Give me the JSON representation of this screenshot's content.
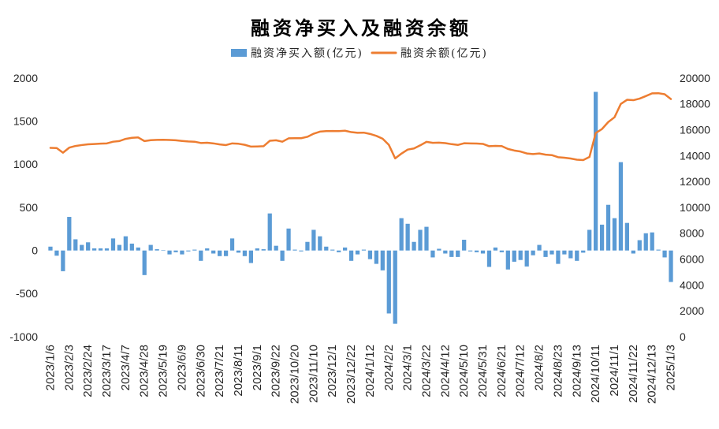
{
  "chart_data": {
    "type": "bar",
    "title": "融资净买入及融资余额",
    "categories": [
      "2023/1/6",
      "",
      "",
      "2023/2/3",
      "",
      "",
      "2023/2/24",
      "",
      "",
      "2023/3/17",
      "",
      "",
      "2023/4/7",
      "",
      "",
      "2023/4/28",
      "",
      "",
      "2023/5/19",
      "",
      "",
      "2023/6/9",
      "",
      "",
      "2023/6/30",
      "",
      "",
      "2023/7/21",
      "",
      "",
      "2023/8/11",
      "",
      "",
      "2023/9/1",
      "",
      "",
      "2023/9/22",
      "",
      "",
      "2023/10/20",
      "",
      "",
      "2023/11/10",
      "",
      "",
      "2023/12/1",
      "",
      "",
      "2023/12/22",
      "",
      "",
      "2024/1/12",
      "",
      "",
      "2024/2/2",
      "",
      "",
      "2024/3/1",
      "",
      "",
      "2024/3/22",
      "",
      "",
      "2024/4/12",
      "",
      "",
      "2024/5/10",
      "",
      "",
      "2024/5/31",
      "",
      "",
      "2024/6/21",
      "",
      "",
      "2024/7/12",
      "",
      "",
      "2024/8/2",
      "",
      "",
      "2024/8/23",
      "",
      "",
      "2024/9/13",
      "",
      "",
      "2024/10/11",
      "",
      "",
      "2024/11/1",
      "",
      "",
      "2024/11/22",
      "",
      "",
      "2024/12/13",
      "",
      "",
      "2025/1/3"
    ],
    "series": [
      {
        "name": "融资净买入额(亿元)",
        "type": "bar",
        "axis": "left",
        "color": "#5B9BD5",
        "values": [
          45,
          -60,
          -240,
          390,
          130,
          65,
          95,
          25,
          25,
          25,
          140,
          65,
          165,
          80,
          35,
          -285,
          65,
          15,
          5,
          -45,
          -20,
          -45,
          -10,
          10,
          -120,
          25,
          -35,
          -65,
          -65,
          140,
          -25,
          -65,
          -145,
          25,
          15,
          430,
          55,
          -120,
          255,
          10,
          -10,
          100,
          240,
          165,
          45,
          10,
          -20,
          35,
          -120,
          -45,
          10,
          -100,
          -155,
          -230,
          -730,
          -850,
          375,
          310,
          100,
          240,
          275,
          -80,
          20,
          -35,
          -75,
          -75,
          125,
          -10,
          -20,
          -35,
          -190,
          35,
          -20,
          -220,
          -130,
          -110,
          -185,
          -55,
          65,
          -75,
          -45,
          -155,
          -45,
          -90,
          -120,
          -25,
          240,
          1840,
          300,
          530,
          375,
          1025,
          320,
          -35,
          120,
          200,
          210,
          10,
          -80,
          -365
        ]
      },
      {
        "name": "融资余额(亿元)",
        "type": "line",
        "axis": "right",
        "color": "#ED7D31",
        "values": [
          14600,
          14590,
          14230,
          14620,
          14750,
          14820,
          14880,
          14900,
          14930,
          14950,
          15080,
          15130,
          15300,
          15380,
          15410,
          15130,
          15200,
          15220,
          15230,
          15210,
          15190,
          15140,
          15100,
          15080,
          14980,
          15000,
          14950,
          14870,
          14820,
          14950,
          14920,
          14840,
          14700,
          14710,
          14730,
          15150,
          15190,
          15080,
          15340,
          15350,
          15350,
          15460,
          15700,
          15860,
          15900,
          15910,
          15900,
          15930,
          15820,
          15770,
          15780,
          15680,
          15530,
          15310,
          14830,
          13790,
          14160,
          14470,
          14560,
          14800,
          15070,
          14990,
          15010,
          14970,
          14890,
          14830,
          14960,
          14950,
          14940,
          14910,
          14730,
          14760,
          14740,
          14520,
          14400,
          14320,
          14170,
          14120,
          14170,
          14080,
          14040,
          13880,
          13840,
          13780,
          13690,
          13660,
          13900,
          15750,
          16060,
          16600,
          16970,
          18000,
          18320,
          18290,
          18410,
          18610,
          18820,
          18830,
          18750,
          18380
        ]
      }
    ],
    "left_axis": {
      "min": -1000,
      "max": 2000,
      "ticks": [
        2000,
        1500,
        1000,
        500,
        0,
        -500,
        -1000
      ]
    },
    "right_axis": {
      "min": 0,
      "max": 20000,
      "ticks": [
        20000,
        18000,
        16000,
        14000,
        12000,
        10000,
        8000,
        6000,
        4000,
        2000,
        0
      ]
    },
    "grid": false,
    "legend_position": "top"
  }
}
